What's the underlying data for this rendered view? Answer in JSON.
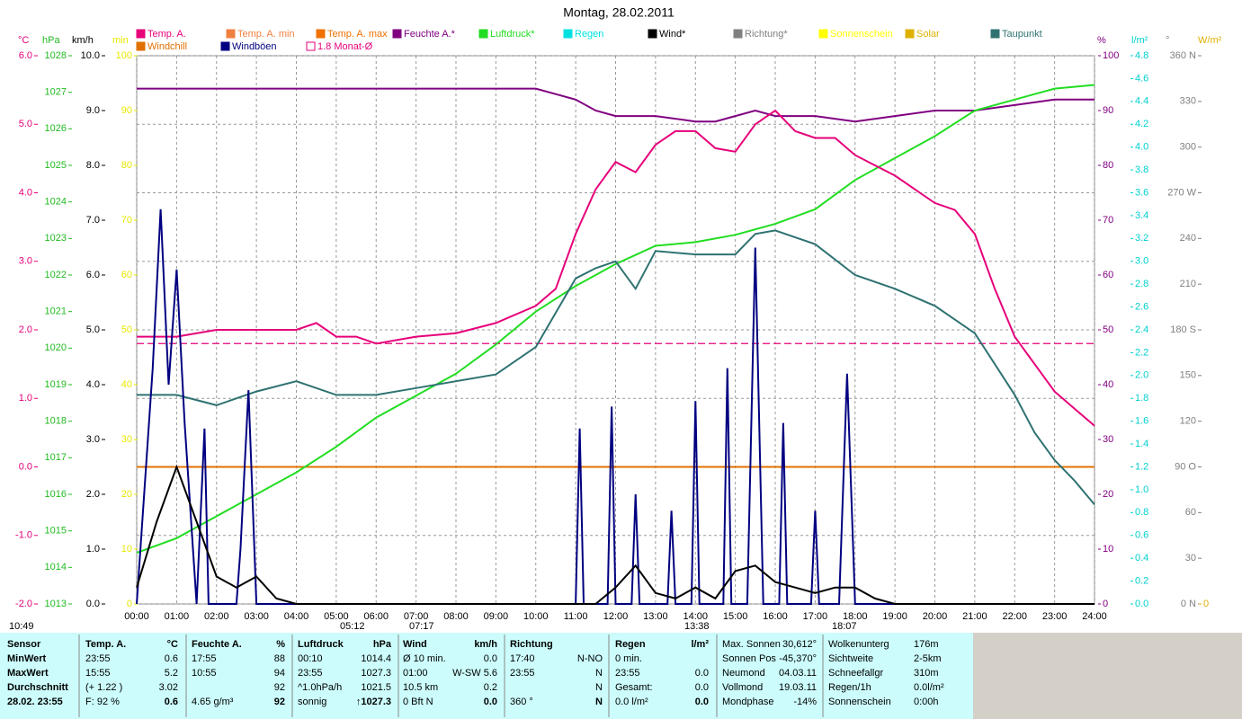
{
  "chart_data": {
    "type": "line",
    "title": "Montag, 28.02.2011",
    "legend": [
      {
        "name": "Temp. A.",
        "color": "#e6007a"
      },
      {
        "name": "Temp. A. min",
        "color": "#f08040"
      },
      {
        "name": "Temp. A. max",
        "color": "#f07000"
      },
      {
        "name": "Feuchte A.*",
        "color": "#800080"
      },
      {
        "name": "Luftdruck*",
        "color": "#22dd22"
      },
      {
        "name": "Regen",
        "color": "#00e0e0"
      },
      {
        "name": "Wind*",
        "color": "#000000"
      },
      {
        "name": "Richtung*",
        "color": "#808080"
      },
      {
        "name": "Sonnenschein",
        "color": "#ffff00"
      },
      {
        "name": "Solar",
        "color": "#e0b000"
      },
      {
        "name": "Taupunkt",
        "color": "#2f7272"
      },
      {
        "name": "Windchill",
        "color": "#e07000"
      },
      {
        "name": "Windböen",
        "color": "#000080"
      },
      {
        "name": "1.8 Monat-Ø",
        "color": "#e6007a",
        "outline": true
      }
    ],
    "axes": [
      {
        "unit": "°C",
        "side": "left",
        "color": "#e6007a",
        "lim": [
          -2,
          6
        ],
        "ticks": [
          {
            "value": -2,
            "label": "-2.0"
          },
          {
            "value": -1,
            "label": "-1.0"
          },
          {
            "value": 0,
            "label": "0.0"
          },
          {
            "value": 1,
            "label": "1.0"
          },
          {
            "value": 2,
            "label": "2.0"
          },
          {
            "value": 3,
            "label": "3.0"
          },
          {
            "value": 4,
            "label": "4.0"
          },
          {
            "value": 5,
            "label": "5.0"
          },
          {
            "value": 6,
            "label": "6.0"
          }
        ],
        "grid": true
      },
      {
        "unit": "hPa",
        "side": "left",
        "color": "#22bb22",
        "lim": [
          1013,
          1028
        ],
        "ticks": [
          1013,
          1014,
          1015,
          1016,
          1017,
          1018,
          1019,
          1020,
          1021,
          1022,
          1023,
          1024,
          1025,
          1026,
          1027,
          1028
        ]
      },
      {
        "unit": "km/h",
        "side": "left",
        "color": "#000000",
        "lim": [
          0,
          10
        ],
        "ticks": [
          {
            "value": 0,
            "label": "0.0"
          },
          {
            "value": 1,
            "label": "1.0"
          },
          {
            "value": 2,
            "label": "2.0"
          },
          {
            "value": 3,
            "label": "3.0"
          },
          {
            "value": 4,
            "label": "4.0"
          },
          {
            "value": 5,
            "label": "5.0"
          },
          {
            "value": 6,
            "label": "6.0"
          },
          {
            "value": 7,
            "label": "7.0"
          },
          {
            "value": 8,
            "label": "8.0"
          },
          {
            "value": 9,
            "label": "9.0"
          },
          {
            "value": 10,
            "label": "10.0"
          }
        ]
      },
      {
        "unit": "min",
        "side": "left",
        "color": "#e8e800",
        "lim": [
          0,
          100
        ],
        "ticks": [
          0,
          10,
          20,
          30,
          40,
          50,
          60,
          70,
          80,
          90,
          100
        ]
      },
      {
        "unit": "%",
        "side": "right",
        "color": "#800080",
        "lim": [
          0,
          100
        ],
        "ticks": [
          0,
          10,
          20,
          30,
          40,
          50,
          60,
          70,
          80,
          90,
          100
        ]
      },
      {
        "unit": "l/m²",
        "side": "right",
        "color": "#00d0d0",
        "lim": [
          0,
          4.8
        ],
        "ticks": [
          {
            "value": 0,
            "label": "0.0"
          },
          0.2,
          0.4,
          0.6,
          0.8,
          {
            "value": 1,
            "label": "1.0"
          },
          1.2,
          1.4,
          1.6,
          1.8,
          {
            "value": 2,
            "label": "2.0"
          },
          2.2,
          2.4,
          2.6,
          2.8,
          {
            "value": 3,
            "label": "3.0"
          },
          3.2,
          3.4,
          3.6,
          3.8,
          {
            "value": 4,
            "label": "4.0"
          },
          4.2,
          4.4,
          4.6,
          4.8
        ]
      },
      {
        "unit": "°",
        "side": "right",
        "color": "#808080",
        "lim": [
          0,
          360
        ],
        "ticks": [
          {
            "value": 0,
            "label": "0 N"
          },
          30,
          60,
          {
            "value": 90,
            "label": "90 O"
          },
          120,
          150,
          {
            "value": 180,
            "label": "180 S"
          },
          210,
          240,
          {
            "value": 270,
            "label": "270 W"
          },
          300,
          330,
          {
            "value": 360,
            "label": "360 N"
          }
        ]
      },
      {
        "unit": "W/m²",
        "side": "right",
        "color": "#e0b000",
        "ticks": [
          0
        ]
      }
    ],
    "xlim": [
      0,
      24
    ],
    "xticks": [
      {
        "value": 0,
        "label": "00:00"
      },
      {
        "value": 1,
        "label": "01:00"
      },
      {
        "value": 2,
        "label": "02:00"
      },
      {
        "value": 3,
        "label": "03:00"
      },
      {
        "value": 4,
        "label": "04:00"
      },
      {
        "value": 5,
        "label": "05:00"
      },
      {
        "value": 6,
        "label": "06:00"
      },
      {
        "value": 7,
        "label": "07:00"
      },
      {
        "value": 8,
        "label": "08:00"
      },
      {
        "value": 9,
        "label": "09:00"
      },
      {
        "value": 10,
        "label": "10:00"
      },
      {
        "value": 11,
        "label": "11:00"
      },
      {
        "value": 12,
        "label": "12:00"
      },
      {
        "value": 13,
        "label": "13:00"
      },
      {
        "value": 14,
        "label": "14:00"
      },
      {
        "value": 15,
        "label": "15:00"
      },
      {
        "value": 16,
        "label": "16:00"
      },
      {
        "value": 17,
        "label": "17:00"
      },
      {
        "value": 18,
        "label": "18:00"
      },
      {
        "value": 19,
        "label": "19:00"
      },
      {
        "value": 20,
        "label": "20:00"
      },
      {
        "value": 21,
        "label": "21:00"
      },
      {
        "value": 22,
        "label": "22:00"
      },
      {
        "value": 23,
        "label": "23:00"
      },
      {
        "value": 24,
        "label": "24:00"
      }
    ],
    "series": [
      {
        "legend": 11,
        "axis": 0,
        "x": [
          0,
          24
        ],
        "values": [
          0,
          0
        ]
      },
      {
        "legend": 3,
        "axis": 4,
        "x": [
          0,
          10,
          10.5,
          11,
          11.5,
          12,
          13,
          14,
          14.5,
          15,
          15.5,
          16,
          17,
          18,
          19,
          20,
          21,
          22,
          23,
          24
        ],
        "values": [
          94,
          94,
          93,
          92,
          90,
          89,
          89,
          88,
          88,
          89,
          90,
          89,
          89,
          88,
          89,
          90,
          90,
          91,
          92,
          92
        ]
      },
      {
        "legend": 4,
        "axis": 1,
        "x": [
          0,
          1,
          2,
          3,
          4,
          5,
          6,
          7,
          8,
          9,
          10,
          11,
          12,
          13,
          14,
          15,
          16,
          17,
          18,
          19,
          20,
          21,
          22,
          23,
          24
        ],
        "values": [
          1014.4,
          1014.8,
          1015.4,
          1016.0,
          1016.6,
          1017.3,
          1018.1,
          1018.7,
          1019.3,
          1020.1,
          1021.0,
          1021.7,
          1022.3,
          1022.8,
          1022.9,
          1023.1,
          1023.4,
          1023.8,
          1024.6,
          1025.2,
          1025.8,
          1026.5,
          1026.8,
          1027.1,
          1027.2
        ]
      },
      {
        "legend": 10,
        "axis": 0,
        "x": [
          0,
          1,
          2,
          3,
          4,
          5,
          6,
          7,
          8,
          9,
          10,
          11,
          11.5,
          12,
          12.5,
          13,
          14,
          15,
          15.5,
          16,
          17,
          18,
          19,
          20,
          21,
          21.5,
          22,
          22.5,
          23,
          23.5,
          24
        ],
        "values": [
          1.05,
          1.05,
          0.9,
          1.1,
          1.25,
          1.05,
          1.05,
          1.15,
          1.25,
          1.35,
          1.75,
          2.75,
          2.9,
          3.0,
          2.6,
          3.15,
          3.1,
          3.1,
          3.4,
          3.45,
          3.25,
          2.8,
          2.6,
          2.35,
          1.95,
          1.5,
          1.05,
          0.5,
          0.1,
          -0.2,
          -0.55
        ]
      },
      {
        "legend": 0,
        "axis": 0,
        "x": [
          0,
          1,
          2,
          3,
          4,
          4.5,
          5,
          5.5,
          6,
          7,
          8,
          9,
          10,
          10.5,
          11,
          11.5,
          12,
          12.5,
          13,
          13.5,
          14,
          14.5,
          15,
          15.5,
          16,
          16.5,
          17,
          17.5,
          18,
          18.5,
          19,
          19.5,
          20,
          20.5,
          21,
          21.5,
          22,
          22.5,
          23,
          23.5,
          24
        ],
        "values": [
          1.9,
          1.9,
          2.0,
          2.0,
          2.0,
          2.1,
          1.9,
          1.9,
          1.8,
          1.9,
          1.95,
          2.1,
          2.35,
          2.6,
          3.4,
          4.05,
          4.45,
          4.3,
          4.7,
          4.9,
          4.9,
          4.65,
          4.6,
          5.0,
          5.2,
          4.9,
          4.8,
          4.8,
          4.55,
          4.4,
          4.25,
          4.05,
          3.85,
          3.75,
          3.4,
          2.6,
          1.9,
          1.5,
          1.1,
          0.85,
          0.6
        ]
      },
      {
        "legend": 12,
        "axis": 2,
        "x": [
          0,
          0.4,
          0.6,
          0.8,
          1.0,
          1.2,
          1.5,
          1.7,
          1.8,
          2.5,
          2.6,
          2.8,
          3.0,
          11.0,
          11.1,
          11.2,
          11.8,
          11.9,
          12.0,
          12.4,
          12.5,
          12.6,
          13.3,
          13.4,
          13.5,
          13.9,
          14.0,
          14.1,
          14.7,
          14.8,
          14.9,
          15.3,
          15.5,
          15.7,
          16.1,
          16.2,
          16.3,
          16.9,
          17.0,
          17.1,
          17.6,
          17.8,
          18.0,
          24
        ],
        "values": [
          0,
          4.3,
          7.2,
          4.0,
          6.1,
          3.3,
          0,
          3.2,
          0,
          0,
          1.0,
          3.9,
          0,
          0,
          3.2,
          0,
          0,
          3.6,
          0,
          0,
          2.0,
          0,
          0,
          1.7,
          0,
          0,
          3.7,
          0,
          0,
          4.3,
          0,
          0,
          6.5,
          0,
          0,
          3.3,
          0,
          0,
          1.7,
          0,
          0,
          4.2,
          0,
          0
        ]
      },
      {
        "legend": 6,
        "axis": 2,
        "x": [
          0,
          0.5,
          1,
          1.5,
          2,
          2.5,
          3,
          3.5,
          4,
          4.5,
          5,
          5.5,
          6,
          6.5,
          7,
          7.5,
          8,
          8.5,
          9,
          9.5,
          10,
          10.5,
          11,
          11.5,
          12,
          12.5,
          13,
          13.5,
          14,
          14.5,
          15,
          15.5,
          16,
          16.5,
          17,
          17.5,
          18,
          18.5,
          19,
          19.5,
          20,
          20.5,
          21,
          21.5,
          22,
          22.5,
          23,
          23.5,
          24
        ],
        "values": [
          0.3,
          1.5,
          2.5,
          1.5,
          0.5,
          0.3,
          0.5,
          0.1,
          0,
          0,
          0,
          0,
          0,
          0,
          0,
          0,
          0,
          0,
          0,
          0,
          0,
          0,
          0,
          0,
          0.3,
          0.7,
          0.2,
          0.1,
          0.3,
          0.1,
          0.6,
          0.7,
          0.4,
          0.3,
          0.2,
          0.3,
          0.3,
          0.1,
          0,
          0,
          0,
          0,
          0,
          0,
          0,
          0,
          0,
          0,
          0
        ]
      }
    ],
    "monthly_avg": {
      "legend": 13,
      "axis": 0,
      "value": 1.8
    },
    "annotations": [
      "10:49",
      "05:12",
      "07:17",
      "13:38",
      "18:07"
    ],
    "table": {
      "columns": [
        {
          "rows": [
            [
              "Sensor",
              null
            ],
            [
              "MinWert",
              null
            ],
            [
              "MaxWert",
              null
            ],
            [
              "Durchschnitt",
              null
            ],
            [
              "28.02. 23:55",
              null
            ]
          ]
        },
        {
          "rows": [
            [
              "Temp. A.",
              "°C"
            ],
            [
              "23:55",
              "0.6"
            ],
            [
              "15:55",
              "5.2"
            ],
            [
              "(+ 1.22 )",
              "3.02"
            ],
            [
              "F: 92 %",
              "0.6"
            ]
          ]
        },
        {
          "rows": [
            [
              "Feuchte A.",
              "%"
            ],
            [
              "17:55",
              "88"
            ],
            [
              "10:55",
              "94"
            ],
            [
              null,
              "92"
            ],
            [
              "4.65 g/m³",
              "92"
            ]
          ]
        },
        {
          "rows": [
            [
              "Luftdruck",
              "hPa"
            ],
            [
              "00:10",
              "1014.4"
            ],
            [
              "23:55",
              "1027.3"
            ],
            [
              "^1.0hPa/h",
              "1021.5"
            ],
            [
              "sonnig",
              "↑1027.3"
            ]
          ]
        },
        {
          "rows": [
            [
              "Wind",
              "km/h"
            ],
            [
              "Ø 10 min.",
              "0.0"
            ],
            [
              "01:00",
              "W-SW 5.6"
            ],
            [
              "10.5 km",
              "0.2"
            ],
            [
              "0 Bft N",
              "0.0"
            ]
          ]
        },
        {
          "rows": [
            [
              "Richtung",
              null
            ],
            [
              "17:40",
              "N-NO"
            ],
            [
              "23:55",
              "N"
            ],
            [
              null,
              "N"
            ],
            [
              "360 °",
              "N"
            ]
          ]
        },
        {
          "rows": [
            [
              "Regen",
              "l/m²"
            ],
            [
              "0 min.",
              null
            ],
            [
              "23:55",
              "0.0"
            ],
            [
              "Gesamt:",
              "0.0"
            ],
            [
              "0.0 l/m²",
              "0.0"
            ]
          ]
        },
        {
          "rows": [
            [
              "Max. Sonnen",
              "30,612°"
            ],
            [
              "Sonnen Pos",
              "-45,370°"
            ],
            [
              "Neumond",
              "04.03.11"
            ],
            [
              "Vollmond",
              "19.03.11"
            ],
            [
              "Mondphase",
              "-14%"
            ]
          ]
        },
        {
          "rows": [
            [
              "Wolkenunterg",
              "176m"
            ],
            [
              "Sichtweite",
              "2-5km"
            ],
            [
              "Schneefallgr",
              "310m"
            ],
            [
              "Regen/1h",
              "0.0l/m²"
            ],
            [
              "Sonnenschein",
              "0:00h"
            ]
          ]
        }
      ]
    }
  }
}
